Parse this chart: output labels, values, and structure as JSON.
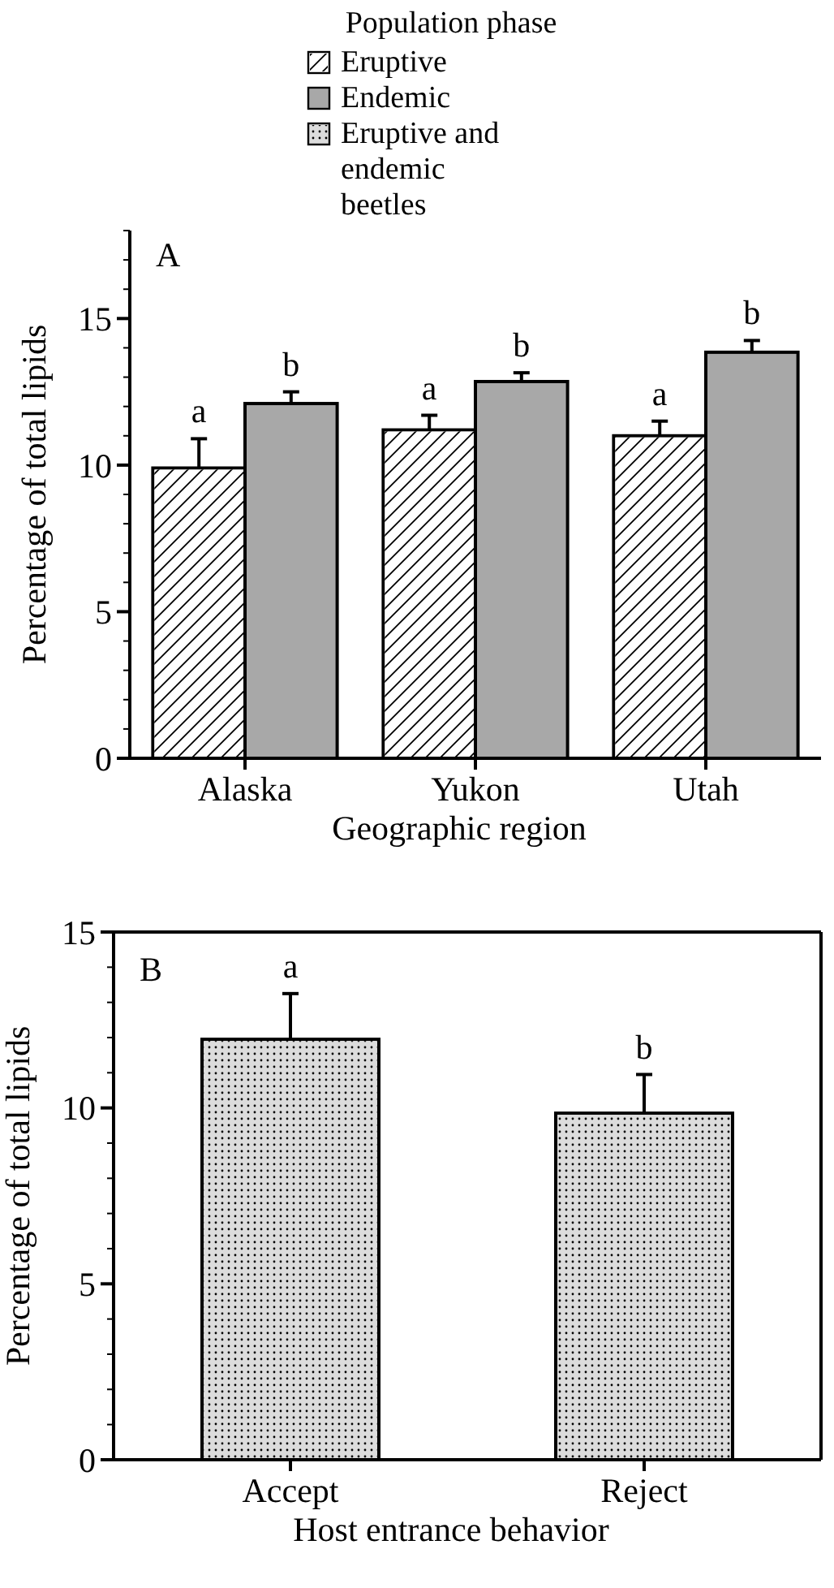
{
  "chart_data": [
    {
      "type": "bar",
      "legend_title": "Population phase",
      "legend": "top",
      "xlabel": "Geographic region",
      "ylabel": "Percentage of total lipids",
      "categories": [
        "Alaska",
        "Yukon",
        "Utah"
      ],
      "series": [
        {
          "name": "Eruptive",
          "color": "#ffffff",
          "values": [
            9.9,
            11.2,
            11.0
          ],
          "errors": [
            [
              9.9,
              10.9
            ],
            [
              11.2,
              11.7
            ],
            [
              11.0,
              11.5
            ]
          ]
        },
        {
          "name": "Endemic",
          "color": "#a8a8a8",
          "values": [
            12.1,
            12.85,
            13.85
          ],
          "errors": [
            [
              12.1,
              12.5
            ],
            [
              12.85,
              13.15
            ],
            [
              13.85,
              14.25
            ]
          ]
        }
      ],
      "ylim": [
        0,
        18
      ],
      "yticks": [
        0,
        5,
        10,
        15
      ],
      "annotations": [
        "A",
        "a",
        "a",
        "a",
        "b",
        "b",
        "b"
      ]
    },
    {
      "type": "bar",
      "legend": "top",
      "xlabel": "Host entrance behavior",
      "ylabel": "Percentage of total lipids",
      "categories": [
        "Accept",
        "Reject"
      ],
      "series": [
        {
          "name": "Eruptive and endemic beetles",
          "color": "#dcdcdc",
          "values": [
            11.95,
            9.85
          ],
          "errors": [
            [
              11.95,
              13.25
            ],
            [
              9.85,
              10.95
            ]
          ]
        }
      ],
      "ylim": [
        0,
        15
      ],
      "yticks": [
        0,
        5,
        10,
        15
      ],
      "annotations": [
        "B",
        {
          "text": "a",
          "x": "Accept",
          "y": 13.25
        },
        {
          "text": "b",
          "x": "Reject",
          "y": 10.95
        }
      ]
    }
  ]
}
